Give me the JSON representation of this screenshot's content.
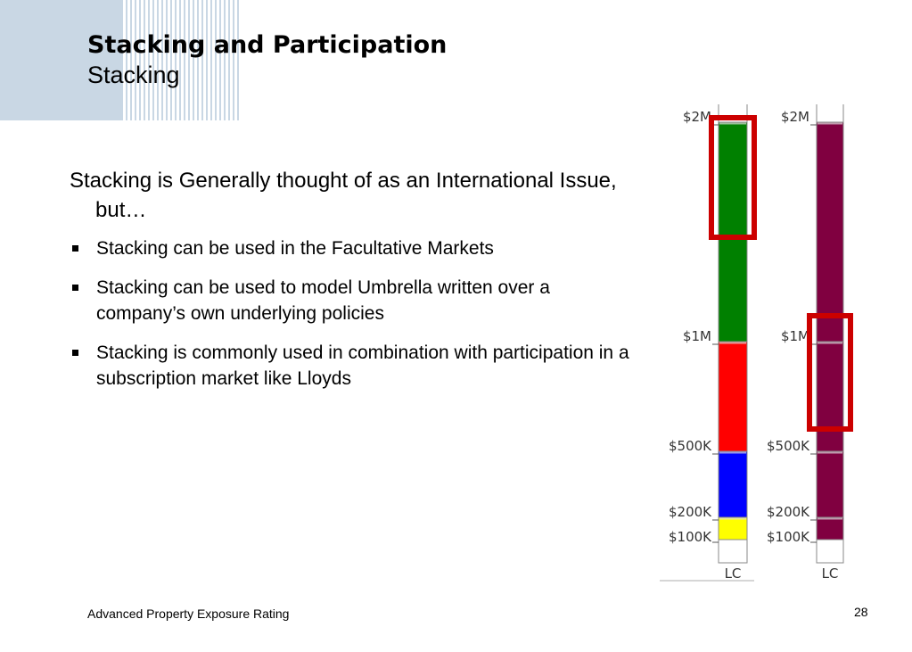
{
  "slide": {
    "title": "Stacking and Participation",
    "subtitle": "Stacking",
    "intro": "Stacking is Generally thought of as an International Issue, but…",
    "bullets": [
      "Stacking can be used in the Facultative Markets",
      "Stacking can be used to model Umbrella written over a company’s own underlying policies",
      "Stacking is commonly used in combination with participation in a subscription market like Lloyds"
    ],
    "footer": "Advanced Property Exposure Rating",
    "page_number": "28"
  },
  "chart_data": {
    "type": "bar",
    "columns": [
      {
        "bottom_label": "LC",
        "tick_labels": [
          "$2M",
          "$1M",
          "$500K",
          "$200K",
          "$100K"
        ],
        "layers": [
          {
            "from": "LC",
            "to": "$100K",
            "color": "#ffffff"
          },
          {
            "from": "$100K",
            "to": "$200K",
            "color": "#ffff00"
          },
          {
            "from": "$200K",
            "to": "$500K",
            "color": "#0000ff"
          },
          {
            "from": "$500K",
            "to": "$1M",
            "color": "#ff0000"
          },
          {
            "from": "$1M",
            "to": "$2M",
            "color": "#008000"
          }
        ],
        "highlight": {
          "from": "$1M",
          "to": "$2M",
          "color": "#cc0000",
          "emphasis": "upper"
        }
      },
      {
        "bottom_label": "LC",
        "tick_labels": [
          "$2M",
          "$1M",
          "$500K",
          "$200K",
          "$100K"
        ],
        "layers": [
          {
            "from": "LC",
            "to": "$100K",
            "color": "#ffffff"
          },
          {
            "from": "$100K",
            "to": "$200K",
            "color": "#800040"
          },
          {
            "from": "$200K",
            "to": "$500K",
            "color": "#800040"
          },
          {
            "from": "$500K",
            "to": "$1M",
            "color": "#800040"
          },
          {
            "from": "$1M",
            "to": "$2M",
            "color": "#800040"
          }
        ],
        "highlight": {
          "from": "$500K",
          "to": "$1M",
          "color": "#cc0000",
          "emphasis": "upper"
        }
      }
    ]
  }
}
